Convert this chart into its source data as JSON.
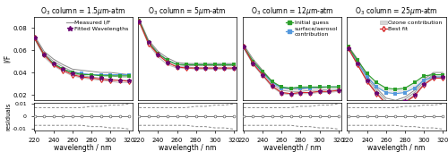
{
  "wavelengths": [
    220,
    230,
    240,
    250,
    260,
    270,
    280,
    290,
    300,
    310,
    320
  ],
  "titles": [
    "O$_3$ column = 1.5$\\mu$m-atm",
    "O$_3$ column = 5$\\mu$m-atm",
    "O$_3$ column = 12$\\mu$m-atm",
    "O$_3$ column = 25$\\mu$m-atm"
  ],
  "measured_bundle": [
    [
      [
        0.07,
        0.054,
        0.046,
        0.041,
        0.037,
        0.035,
        0.034,
        0.033,
        0.032,
        0.031,
        0.031
      ],
      [
        0.071,
        0.056,
        0.048,
        0.043,
        0.039,
        0.037,
        0.036,
        0.035,
        0.034,
        0.033,
        0.033
      ],
      [
        0.072,
        0.057,
        0.05,
        0.045,
        0.041,
        0.039,
        0.038,
        0.038,
        0.037,
        0.036,
        0.036
      ],
      [
        0.073,
        0.059,
        0.052,
        0.047,
        0.043,
        0.042,
        0.041,
        0.04,
        0.04,
        0.039,
        0.038
      ]
    ],
    [
      [
        0.085,
        0.065,
        0.054,
        0.047,
        0.044,
        0.044,
        0.043,
        0.043,
        0.043,
        0.043,
        0.043
      ],
      [
        0.086,
        0.067,
        0.056,
        0.049,
        0.045,
        0.045,
        0.044,
        0.044,
        0.044,
        0.044,
        0.044
      ],
      [
        0.087,
        0.068,
        0.057,
        0.051,
        0.047,
        0.046,
        0.046,
        0.046,
        0.046,
        0.046,
        0.046
      ],
      [
        0.088,
        0.069,
        0.059,
        0.053,
        0.049,
        0.048,
        0.048,
        0.048,
        0.048,
        0.048,
        0.048
      ]
    ],
    [
      [
        0.062,
        0.047,
        0.037,
        0.027,
        0.021,
        0.02,
        0.021,
        0.021,
        0.022,
        0.022,
        0.023
      ],
      [
        0.063,
        0.048,
        0.038,
        0.028,
        0.022,
        0.021,
        0.022,
        0.022,
        0.023,
        0.023,
        0.024
      ],
      [
        0.064,
        0.05,
        0.04,
        0.03,
        0.024,
        0.023,
        0.023,
        0.024,
        0.024,
        0.025,
        0.025
      ],
      [
        0.065,
        0.052,
        0.042,
        0.032,
        0.026,
        0.025,
        0.025,
        0.026,
        0.026,
        0.027,
        0.027
      ]
    ],
    [
      [
        0.061,
        0.047,
        0.032,
        0.021,
        0.012,
        0.01,
        0.013,
        0.019,
        0.029,
        0.035,
        0.035
      ],
      [
        0.062,
        0.048,
        0.033,
        0.022,
        0.013,
        0.011,
        0.014,
        0.02,
        0.03,
        0.036,
        0.036
      ],
      [
        0.063,
        0.05,
        0.035,
        0.024,
        0.015,
        0.013,
        0.016,
        0.022,
        0.032,
        0.038,
        0.038
      ],
      [
        0.064,
        0.052,
        0.037,
        0.026,
        0.017,
        0.015,
        0.018,
        0.024,
        0.034,
        0.04,
        0.04
      ]
    ]
  ],
  "fitted_pts": [
    [
      0.071,
      0.056,
      0.048,
      0.043,
      0.039,
      0.037,
      0.036,
      0.035,
      0.034,
      0.033,
      0.033
    ],
    [
      0.086,
      0.067,
      0.056,
      0.049,
      0.045,
      0.045,
      0.044,
      0.044,
      0.044,
      0.044,
      0.044
    ],
    [
      0.063,
      0.048,
      0.038,
      0.028,
      0.022,
      0.021,
      0.022,
      0.022,
      0.023,
      0.023,
      0.024
    ],
    [
      0.062,
      0.048,
      0.033,
      0.022,
      0.013,
      0.011,
      0.014,
      0.02,
      0.03,
      0.036,
      0.036
    ]
  ],
  "initial_guess": [
    [
      0.071,
      0.056,
      0.048,
      0.043,
      0.04,
      0.038,
      0.038,
      0.037,
      0.037,
      0.037,
      0.037
    ],
    [
      0.087,
      0.067,
      0.057,
      0.051,
      0.047,
      0.047,
      0.047,
      0.047,
      0.047,
      0.047,
      0.047
    ],
    [
      0.063,
      0.05,
      0.041,
      0.032,
      0.027,
      0.026,
      0.027,
      0.027,
      0.027,
      0.027,
      0.027
    ],
    [
      0.063,
      0.051,
      0.039,
      0.031,
      0.026,
      0.025,
      0.026,
      0.031,
      0.037,
      0.038,
      0.038
    ]
  ],
  "surface_aerosol": [
    [
      0.071,
      0.056,
      0.048,
      0.043,
      0.04,
      0.039,
      0.038,
      0.038,
      0.038,
      0.038,
      0.038
    ],
    [
      0.087,
      0.067,
      0.057,
      0.051,
      0.047,
      0.047,
      0.047,
      0.047,
      0.047,
      0.047,
      0.047
    ],
    [
      0.062,
      0.049,
      0.04,
      0.031,
      0.026,
      0.026,
      0.026,
      0.026,
      0.027,
      0.027,
      0.027
    ],
    [
      0.062,
      0.049,
      0.036,
      0.027,
      0.022,
      0.021,
      0.022,
      0.026,
      0.033,
      0.036,
      0.036
    ]
  ],
  "best_fit": [
    [
      0.071,
      0.056,
      0.047,
      0.042,
      0.038,
      0.036,
      0.035,
      0.034,
      0.033,
      0.033,
      0.032
    ],
    [
      0.086,
      0.066,
      0.056,
      0.049,
      0.045,
      0.044,
      0.044,
      0.044,
      0.044,
      0.044,
      0.044
    ],
    [
      0.063,
      0.048,
      0.038,
      0.028,
      0.022,
      0.021,
      0.022,
      0.022,
      0.023,
      0.023,
      0.024
    ],
    [
      0.062,
      0.047,
      0.032,
      0.021,
      0.012,
      0.01,
      0.013,
      0.019,
      0.029,
      0.035,
      0.035
    ]
  ],
  "residuals_zero": [
    0.0,
    0.0,
    0.0,
    0.0,
    0.0,
    0.0,
    0.0,
    0.0,
    0.0,
    0.0,
    0.0
  ],
  "residuals_up": [
    0.007,
    0.007,
    0.007,
    0.007,
    0.007,
    0.007,
    0.008,
    0.008,
    0.009,
    0.009,
    0.01
  ],
  "residuals_dn": [
    -0.007,
    -0.007,
    -0.007,
    -0.007,
    -0.007,
    -0.007,
    -0.008,
    -0.008,
    -0.009,
    -0.009,
    -0.01
  ],
  "color_measured_base": "#999999",
  "color_measured_bundle": [
    "#aaaaaa",
    "#999999",
    "#888888",
    "#777777"
  ],
  "color_initial": "#2ca02c",
  "color_surface": "#5599dd",
  "color_bestfit": "#d62728",
  "color_ozone_fill": "#cccccc",
  "color_fitted_pts": "#6a0572",
  "ylim_main": [
    0.015,
    0.09
  ],
  "ylim_res": [
    -0.011,
    0.011
  ],
  "yticks_main": [
    0.02,
    0.04,
    0.06,
    0.08
  ],
  "yticks_res": [
    -0.01,
    0.0,
    0.01
  ],
  "xticks": [
    220,
    240,
    260,
    280,
    300,
    320
  ],
  "xlabel": "wavelength / nm",
  "ylabel_main": "I/F",
  "ylabel_res": "residuals",
  "legend1_items": [
    "Measured I/F",
    "Fitted Wavelengths"
  ],
  "legend2_items": [
    "Initial guess",
    "surface/aerosol\ncontribution"
  ],
  "legend3_items": [
    "Ozone contribution",
    "Best fit"
  ],
  "bg_color": "#ffffff"
}
